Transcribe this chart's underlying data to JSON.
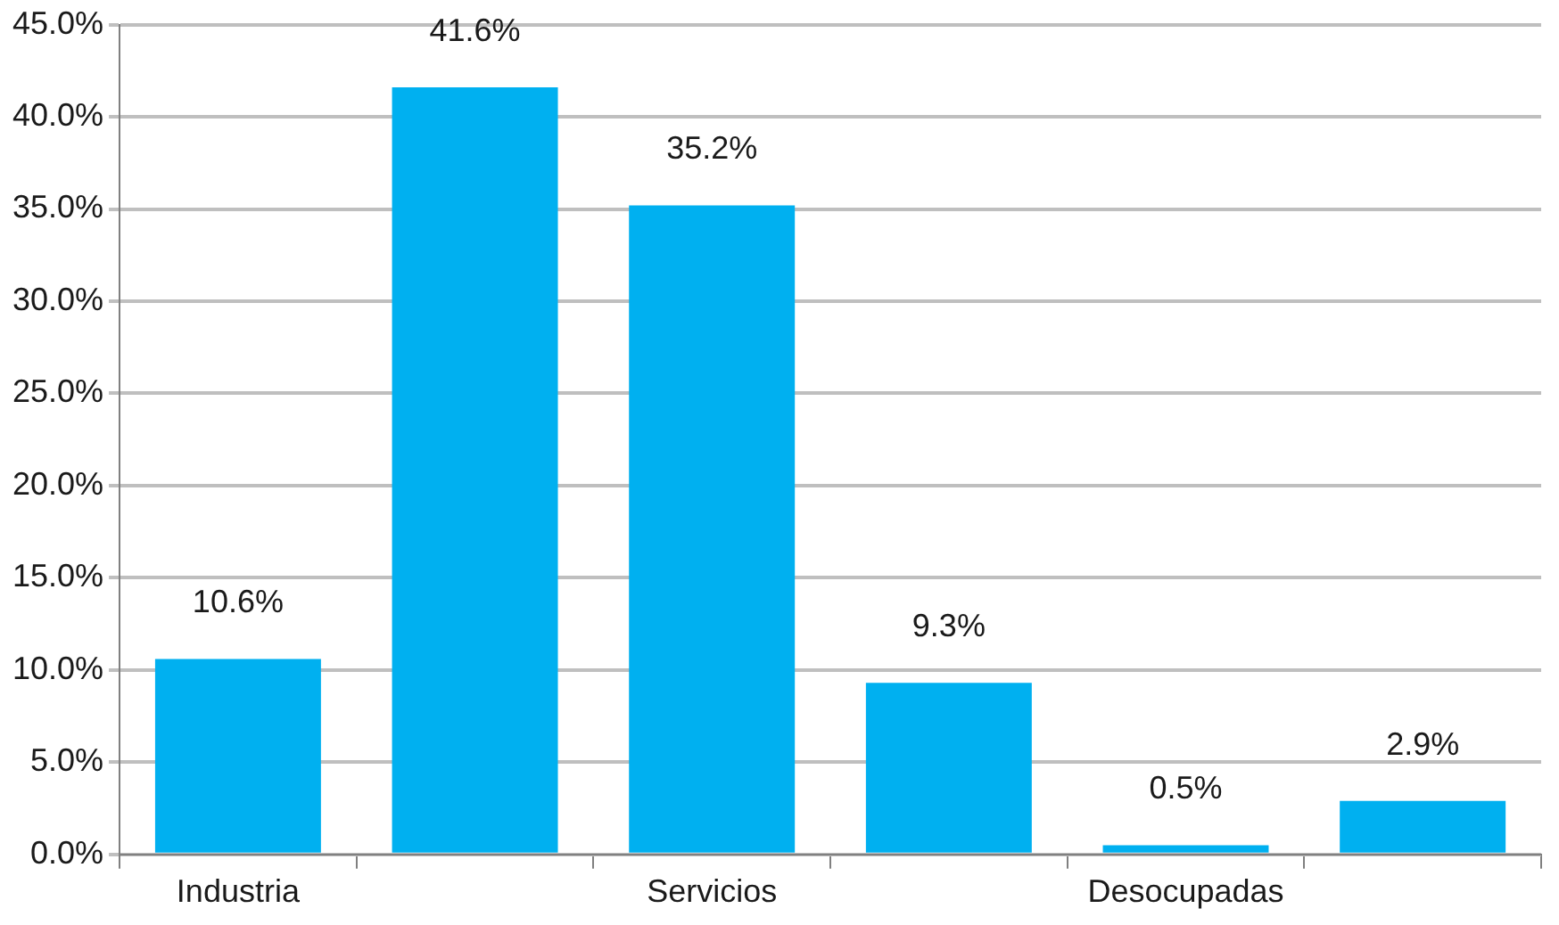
{
  "chart_data": {
    "type": "bar",
    "categories": [
      "Industria",
      null,
      "Servicios",
      null,
      "Desocupadas",
      null
    ],
    "values": [
      10.6,
      41.6,
      35.2,
      9.3,
      0.5,
      2.9
    ],
    "value_labels": [
      "10.6%",
      "41.6%",
      "35.2%",
      "9.3%",
      "0.5%",
      "2.9%"
    ],
    "color": "#00b0f0",
    "ylim": [
      0,
      45
    ],
    "yticks": [
      {
        "value": 0,
        "label": "0.0%"
      },
      {
        "value": 5,
        "label": "5.0%"
      },
      {
        "value": 10,
        "label": "10.0%"
      },
      {
        "value": 15,
        "label": "15.0%"
      },
      {
        "value": 20,
        "label": "20.0%"
      },
      {
        "value": 25,
        "label": "25.0%"
      },
      {
        "value": 30,
        "label": "30.0%"
      },
      {
        "value": 35,
        "label": "35.0%"
      },
      {
        "value": 40,
        "label": "40.0%"
      },
      {
        "value": 45,
        "label": "45.0%"
      }
    ],
    "grid": "y",
    "legend": false
  }
}
